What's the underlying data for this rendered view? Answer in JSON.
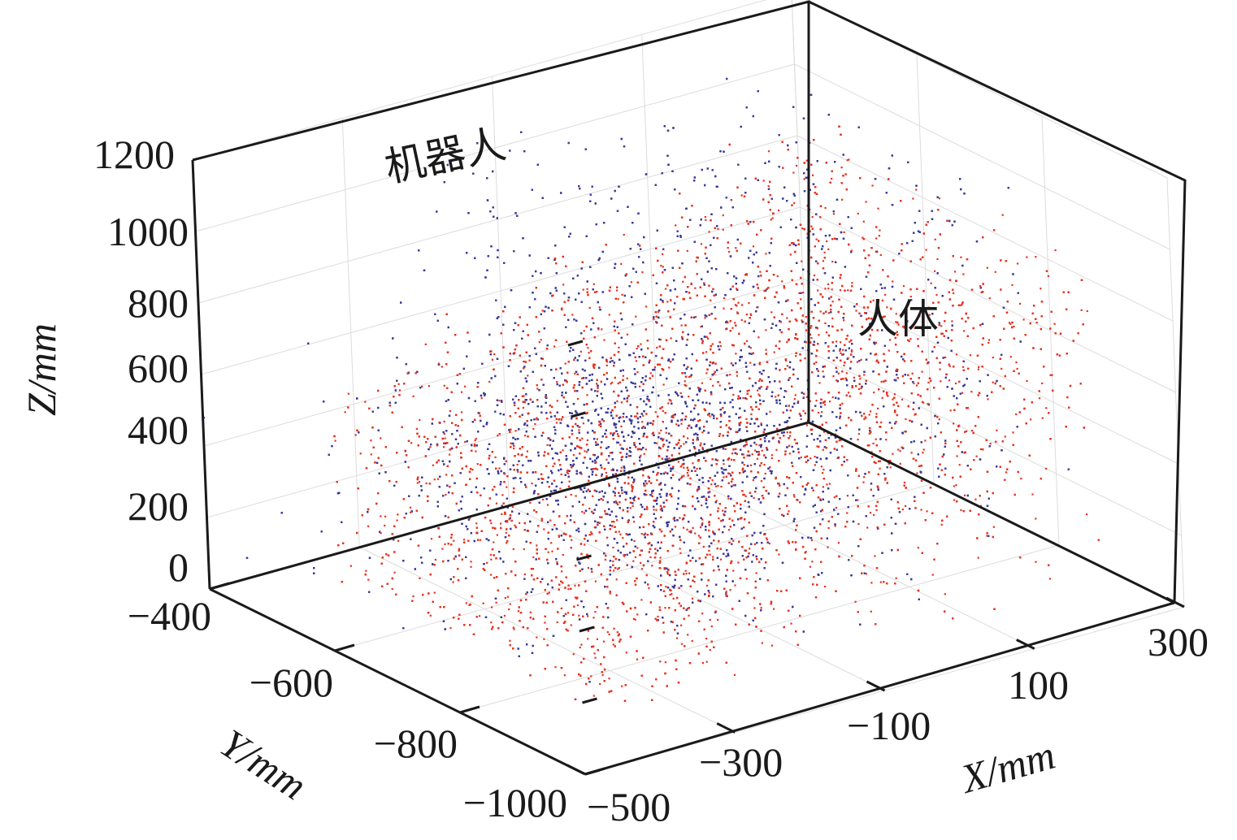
{
  "chart_data": {
    "type": "scatter",
    "projection": "3d",
    "title": "",
    "xlabel": "X/mm",
    "ylabel": "Y/mm",
    "zlabel": "Z/mm",
    "xlim": [
      -500,
      300
    ],
    "ylim": [
      -1000,
      -400
    ],
    "zlim": [
      0,
      1200
    ],
    "x_ticks": [
      "−500",
      "−300",
      "−100",
      "100",
      "300"
    ],
    "y_ticks": [
      "−1000",
      "−800",
      "−600",
      "−400"
    ],
    "z_ticks": [
      "0",
      "200",
      "400",
      "600",
      "800",
      "1000",
      "1200"
    ],
    "grid": true,
    "annotations": [
      {
        "id": "robot",
        "text": "机器人"
      },
      {
        "id": "human",
        "text": "人体"
      }
    ],
    "series": [
      {
        "label_ref": "robot",
        "color": "#3b3b9a",
        "marker": "point",
        "distribution": "dense point cloud",
        "x_range": [
          -500,
          300
        ],
        "y_range": [
          -1000,
          -400
        ],
        "z_range": [
          100,
          1200
        ]
      },
      {
        "label_ref": "human",
        "color": "#e8321f",
        "marker": "point",
        "distribution": "dense point cloud",
        "x_range": [
          -500,
          300
        ],
        "y_range": [
          -1000,
          -400
        ],
        "z_range": [
          0,
          1000
        ]
      }
    ]
  }
}
